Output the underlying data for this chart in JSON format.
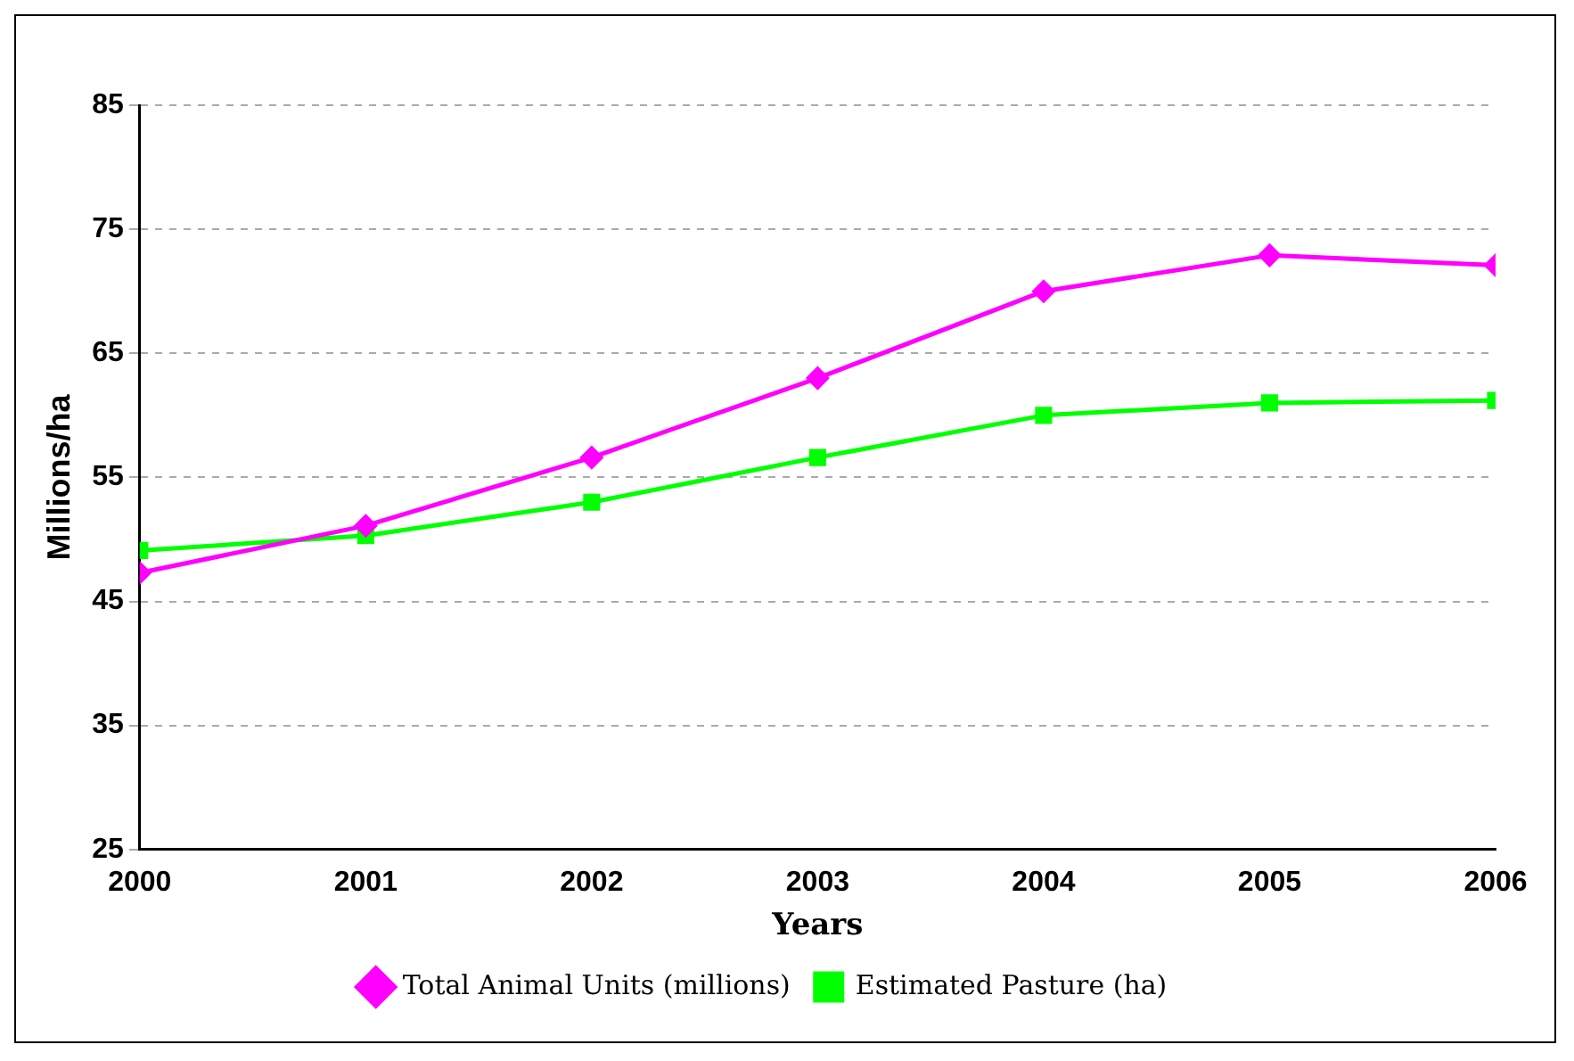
{
  "chart_data": {
    "type": "line",
    "xlabel": "Years",
    "ylabel": "Millions/ha",
    "x": [
      2000,
      2001,
      2002,
      2003,
      2004,
      2005,
      2006
    ],
    "series": [
      {
        "name": "Total Animal Units (millions)",
        "color": "#ff00ff",
        "marker": "diamond",
        "values": [
          47.3,
          51.1,
          56.6,
          63,
          70,
          72.9,
          72.1
        ]
      },
      {
        "name": "Estimated Pasture (ha)",
        "color": "#00ff00",
        "marker": "square",
        "values": [
          49.1,
          50.3,
          53,
          56.6,
          60,
          61,
          61.2
        ]
      }
    ],
    "xlim": [
      2000,
      2006
    ],
    "xticks": [
      2000,
      2001,
      2002,
      2003,
      2004,
      2005,
      2006
    ],
    "ylim": [
      25,
      85
    ],
    "yticks": [
      25,
      35,
      45,
      55,
      65,
      75,
      85
    ],
    "grid": "y",
    "legend": "bottom",
    "line_style": "solid"
  }
}
